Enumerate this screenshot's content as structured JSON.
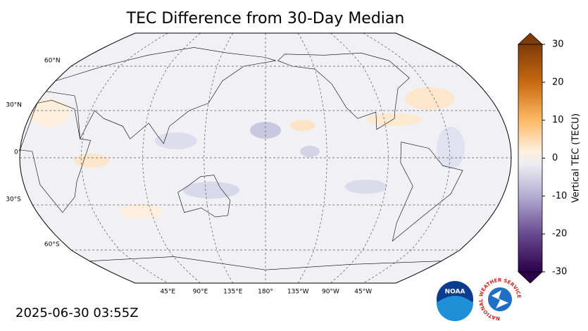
{
  "title": "TEC Difference from 30-Day Median",
  "map": {
    "lat_labels": [
      "60°N",
      "30°N",
      "0°",
      "30°S",
      "60°S"
    ],
    "lon_labels": [
      "45°E",
      "90°E",
      "135°E",
      "180°",
      "135°W",
      "90°W",
      "45°W"
    ]
  },
  "colorbar": {
    "label": "Vertical TEC (TECU)",
    "lim": [
      -30,
      30
    ],
    "ticks": [
      -30,
      -20,
      -10,
      0,
      10,
      20,
      30
    ]
  },
  "timestamp": "2025-06-30 03:55Z",
  "logos": {
    "noaa": "NOAA",
    "nws": "NATIONAL WEATHER SERVICE"
  }
}
